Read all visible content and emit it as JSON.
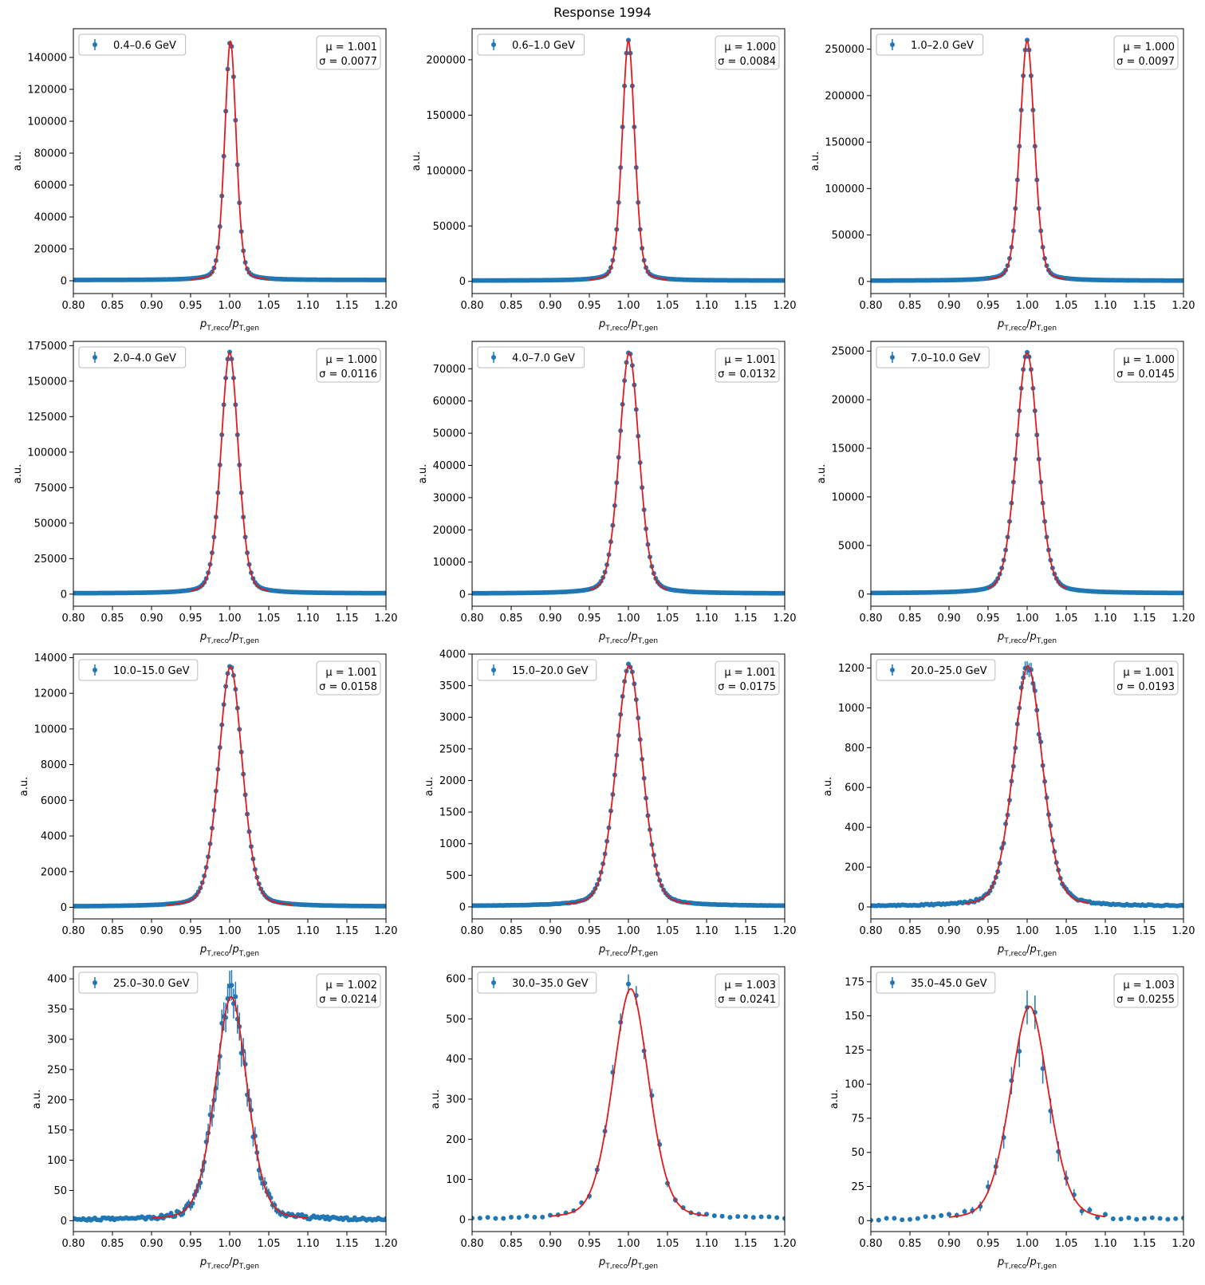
{
  "title": "Response 1994",
  "colors": {
    "data": "#1f77b4",
    "fit": "#e31a1c",
    "axis": "#000000",
    "box": "#bbbbbb"
  },
  "chart_data": [
    {
      "type": "scatter",
      "label": "0.4–0.6 GeV",
      "mu_text": "μ = 1.001",
      "sigma_text": "σ = 0.0077",
      "mu": 1.001,
      "sigma": 0.0077,
      "peak": 150000,
      "xlim": [
        0.8,
        1.2
      ],
      "ylim": [
        -8000,
        158000
      ],
      "yticks": [
        0,
        20000,
        40000,
        60000,
        80000,
        100000,
        120000,
        140000
      ],
      "ylabel": "a.u.",
      "xlabel": "pT,reco/pT,gen",
      "fit_range": [
        0.95,
        1.05
      ],
      "bin": 0.0025,
      "err_scale": 0
    },
    {
      "type": "scatter",
      "label": "0.6–1.0 GeV",
      "mu_text": "μ = 1.000",
      "sigma_text": "σ = 0.0084",
      "mu": 1.0,
      "sigma": 0.0084,
      "peak": 217000,
      "xlim": [
        0.8,
        1.2
      ],
      "ylim": [
        -11000,
        228000
      ],
      "yticks": [
        0,
        50000,
        100000,
        150000,
        200000
      ],
      "ylabel": "a.u.",
      "xlabel": "pT,reco/pT,gen",
      "fit_range": [
        0.95,
        1.05
      ],
      "bin": 0.0025,
      "err_scale": 0
    },
    {
      "type": "scatter",
      "label": "1.0–2.0 GeV",
      "mu_text": "μ = 1.000",
      "sigma_text": "σ = 0.0097",
      "mu": 1.0,
      "sigma": 0.0097,
      "peak": 259000,
      "xlim": [
        0.8,
        1.2
      ],
      "ylim": [
        -13000,
        272000
      ],
      "yticks": [
        0,
        50000,
        100000,
        150000,
        200000,
        250000
      ],
      "ylabel": "a.u.",
      "xlabel": "pT,reco/pT,gen",
      "fit_range": [
        0.95,
        1.05
      ],
      "bin": 0.0025,
      "err_scale": 0
    },
    {
      "type": "scatter",
      "label": "2.0–4.0 GeV",
      "mu_text": "μ = 1.000",
      "sigma_text": "σ = 0.0116",
      "mu": 1.0,
      "sigma": 0.0116,
      "peak": 170000,
      "xlim": [
        0.8,
        1.2
      ],
      "ylim": [
        -8500,
        178000
      ],
      "yticks": [
        0,
        25000,
        50000,
        75000,
        100000,
        125000,
        150000,
        175000
      ],
      "ylabel": "a.u.",
      "xlabel": "pT,reco/pT,gen",
      "fit_range": [
        0.95,
        1.05
      ],
      "bin": 0.0025,
      "err_scale": 0
    },
    {
      "type": "scatter",
      "label": "4.0–7.0 GeV",
      "mu_text": "μ = 1.001",
      "sigma_text": "σ = 0.0132",
      "mu": 1.001,
      "sigma": 0.0132,
      "peak": 75000,
      "xlim": [
        0.8,
        1.2
      ],
      "ylim": [
        -3700,
        78500
      ],
      "yticks": [
        0,
        10000,
        20000,
        30000,
        40000,
        50000,
        60000,
        70000
      ],
      "ylabel": "a.u.",
      "xlabel": "pT,reco/pT,gen",
      "fit_range": [
        0.95,
        1.05
      ],
      "bin": 0.0025,
      "err_scale": 0
    },
    {
      "type": "scatter",
      "label": "7.0–10.0 GeV",
      "mu_text": "μ = 1.000",
      "sigma_text": "σ = 0.0145",
      "mu": 1.0,
      "sigma": 0.0145,
      "peak": 24800,
      "xlim": [
        0.8,
        1.2
      ],
      "ylim": [
        -1250,
        26000
      ],
      "yticks": [
        0,
        5000,
        10000,
        15000,
        20000,
        25000
      ],
      "ylabel": "a.u.",
      "xlabel": "pT,reco/pT,gen",
      "fit_range": [
        0.95,
        1.05
      ],
      "bin": 0.0025,
      "err_scale": 0
    },
    {
      "type": "scatter",
      "label": "10.0–15.0 GeV",
      "mu_text": "μ = 1.001",
      "sigma_text": "σ = 0.0158",
      "mu": 1.001,
      "sigma": 0.0158,
      "peak": 13500,
      "xlim": [
        0.8,
        1.2
      ],
      "ylim": [
        -650,
        14200
      ],
      "yticks": [
        0,
        2000,
        4000,
        6000,
        8000,
        10000,
        12000,
        14000
      ],
      "ylabel": "a.u.",
      "xlabel": "pT,reco/pT,gen",
      "fit_range": [
        0.92,
        1.08
      ],
      "bin": 0.0025,
      "err_scale": 0.2
    },
    {
      "type": "scatter",
      "label": "15.0–20.0 GeV",
      "mu_text": "μ = 1.001",
      "sigma_text": "σ = 0.0175",
      "mu": 1.001,
      "sigma": 0.0175,
      "peak": 3820,
      "xlim": [
        0.8,
        1.2
      ],
      "ylim": [
        -190,
        4000
      ],
      "yticks": [
        0,
        500,
        1000,
        1500,
        2000,
        2500,
        3000,
        3500,
        4000
      ],
      "ylabel": "a.u.",
      "xlabel": "pT,reco/pT,gen",
      "fit_range": [
        0.92,
        1.08
      ],
      "bin": 0.0025,
      "err_scale": 0.4
    },
    {
      "type": "scatter",
      "label": "20.0–25.0 GeV",
      "mu_text": "μ = 1.001",
      "sigma_text": "σ = 0.0193",
      "mu": 1.001,
      "sigma": 0.0193,
      "peak": 1210,
      "xlim": [
        0.8,
        1.2
      ],
      "ylim": [
        -60,
        1270
      ],
      "yticks": [
        0,
        200,
        400,
        600,
        800,
        1000,
        1200
      ],
      "ylabel": "a.u.",
      "xlabel": "pT,reco/pT,gen",
      "fit_range": [
        0.92,
        1.08
      ],
      "bin": 0.0025,
      "err_scale": 1
    },
    {
      "type": "scatter",
      "label": "25.0–30.0 GeV",
      "mu_text": "μ = 1.002",
      "sigma_text": "σ = 0.0214",
      "mu": 1.002,
      "sigma": 0.0214,
      "peak": 370,
      "xlim": [
        0.8,
        1.2
      ],
      "ylim": [
        -18,
        420
      ],
      "yticks": [
        0,
        50,
        100,
        150,
        200,
        250,
        300,
        350,
        400
      ],
      "ylabel": "a.u.",
      "xlabel": "pT,reco/pT,gen",
      "fit_range": [
        0.9,
        1.1
      ],
      "bin": 0.0025,
      "err_scale": 1.3
    },
    {
      "type": "scatter",
      "label": "30.0–35.0 GeV",
      "mu_text": "μ = 1.003",
      "sigma_text": "σ = 0.0241",
      "mu": 1.003,
      "sigma": 0.0241,
      "peak": 575,
      "xlim": [
        0.8,
        1.2
      ],
      "ylim": [
        -30,
        630
      ],
      "yticks": [
        0,
        100,
        200,
        300,
        400,
        500,
        600
      ],
      "ylabel": "a.u.",
      "xlabel": "pT,reco/pT,gen",
      "fit_range": [
        0.9,
        1.1
      ],
      "bin": 0.01,
      "err_scale": 1
    },
    {
      "type": "scatter",
      "label": "35.0–45.0 GeV",
      "mu_text": "μ = 1.003",
      "sigma_text": "σ = 0.0255",
      "mu": 1.003,
      "sigma": 0.0255,
      "peak": 157,
      "xlim": [
        0.8,
        1.2
      ],
      "ylim": [
        -8,
        186
      ],
      "yticks": [
        0,
        25,
        50,
        75,
        100,
        125,
        150,
        175
      ],
      "ylabel": "a.u.",
      "xlabel": "pT,reco/pT,gen",
      "fit_range": [
        0.9,
        1.1
      ],
      "bin": 0.01,
      "err_scale": 1
    }
  ],
  "xticks": [
    0.8,
    0.85,
    0.9,
    0.95,
    1.0,
    1.05,
    1.1,
    1.15,
    1.2
  ]
}
